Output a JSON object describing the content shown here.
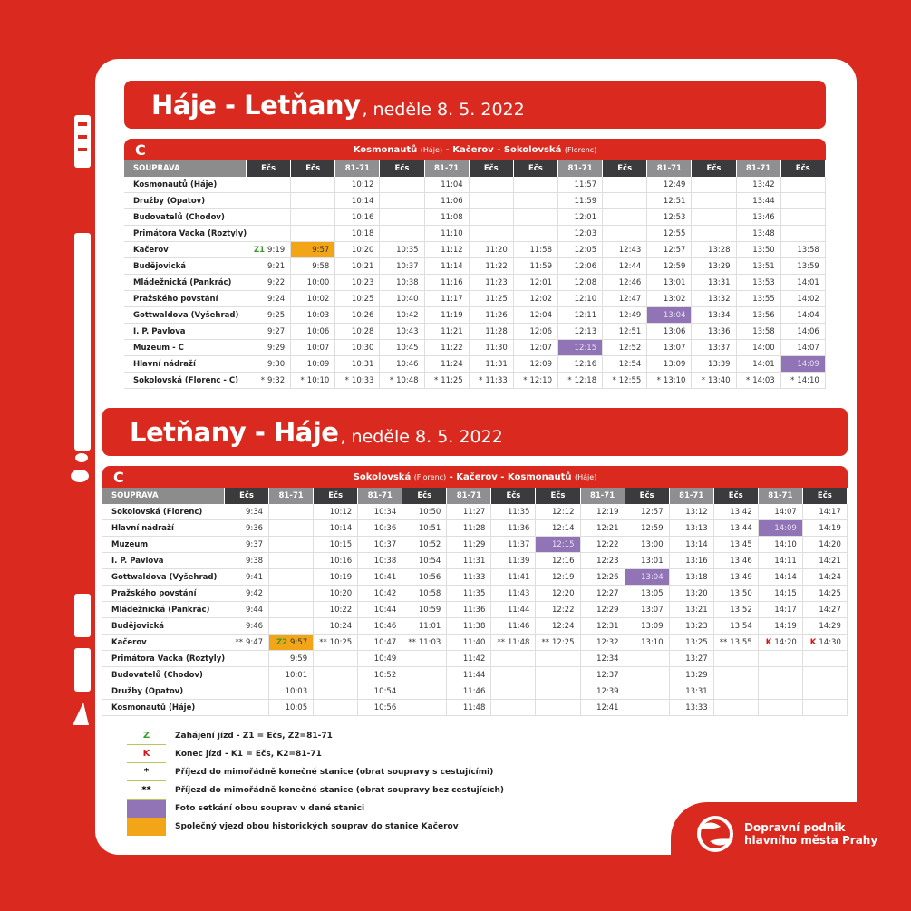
{
  "colors": {
    "red": "#da2a1f",
    "photo": "#9174b6",
    "joint": "#f2a516",
    "ecs_header": "#3b3b3d",
    "t81_header": "#8f8f92"
  },
  "top": {
    "title": "Háje - Letňany",
    "date": ", neděle 8. 5. 2022",
    "line": "C",
    "route": {
      "a": "Kosmonautů",
      "a_sub": "(Háje)",
      "b": " - Kačerov - ",
      "c": "Sokolovská",
      "c_sub": "(Florenc)"
    },
    "header": "SOUPRAVA",
    "columns": [
      "Ečs",
      "Ečs",
      "81-71",
      "Ečs",
      "81-71",
      "Ečs",
      "Ečs",
      "81-71",
      "Ečs",
      "81-71",
      "Ečs",
      "81-71",
      "Ečs"
    ],
    "rows": [
      {
        "station": "Kosmonautů (Háje)",
        "cells": [
          "",
          "",
          "10:12",
          "",
          "11:04",
          "",
          "",
          "11:57",
          "",
          "12:49",
          "",
          "13:42",
          ""
        ]
      },
      {
        "station": "Družby (Opatov)",
        "cells": [
          "",
          "",
          "10:14",
          "",
          "11:06",
          "",
          "",
          "11:59",
          "",
          "12:51",
          "",
          "13:44",
          ""
        ]
      },
      {
        "station": "Budovatelů (Chodov)",
        "cells": [
          "",
          "",
          "10:16",
          "",
          "11:08",
          "",
          "",
          "12:01",
          "",
          "12:53",
          "",
          "13:46",
          ""
        ]
      },
      {
        "station": "Primátora Vacka (Roztyly)",
        "cells": [
          "",
          "",
          "10:18",
          "",
          "11:10",
          "",
          "",
          "12:03",
          "",
          "12:55",
          "",
          "13:48",
          ""
        ]
      },
      {
        "station": "Kačerov",
        "cells": [
          {
            "pre": "Z1",
            "t": "9:19"
          },
          {
            "t": "9:57",
            "hl": "joint"
          },
          "10:20",
          "10:35",
          "11:12",
          "11:20",
          "11:58",
          "12:05",
          "12:43",
          "12:57",
          "13:28",
          "13:50",
          "13:58"
        ]
      },
      {
        "station": "Budějovická",
        "cells": [
          "9:21",
          "9:58",
          "10:21",
          "10:37",
          "11:14",
          "11:22",
          "11:59",
          "12:06",
          "12:44",
          "12:59",
          "13:29",
          "13:51",
          "13:59"
        ]
      },
      {
        "station": "Mládežnická (Pankrác)",
        "cells": [
          "9:22",
          "10:00",
          "10:23",
          "10:38",
          "11:16",
          "11:23",
          "12:01",
          "12:08",
          "12:46",
          "13:01",
          "13:31",
          "13:53",
          "14:01"
        ]
      },
      {
        "station": "Pražského povstání",
        "cells": [
          "9:24",
          "10:02",
          "10:25",
          "10:40",
          "11:17",
          "11:25",
          "12:02",
          "12:10",
          "12:47",
          "13:02",
          "13:32",
          "13:55",
          "14:02"
        ]
      },
      {
        "station": "Gottwaldova (Vyšehrad)",
        "cells": [
          "9:25",
          "10:03",
          "10:26",
          "10:42",
          "11:19",
          "11:26",
          "12:04",
          "12:11",
          "12:49",
          {
            "t": "13:04",
            "hl": "photo"
          },
          "13:34",
          "13:56",
          "14:04"
        ]
      },
      {
        "station": "I. P. Pavlova",
        "cells": [
          "9:27",
          "10:06",
          "10:28",
          "10:43",
          "11:21",
          "11:28",
          "12:06",
          "12:13",
          "12:51",
          "13:06",
          "13:36",
          "13:58",
          "14:06"
        ]
      },
      {
        "station": "Muzeum - C",
        "cells": [
          "9:29",
          "10:07",
          "10:30",
          "10:45",
          "11:22",
          "11:30",
          "12:07",
          {
            "t": "12:15",
            "hl": "photo"
          },
          "12:52",
          "13:07",
          "13:37",
          "14:00",
          "14:07"
        ]
      },
      {
        "station": "Hlavní nádraží",
        "cells": [
          "9:30",
          "10:09",
          "10:31",
          "10:46",
          "11:24",
          "11:31",
          "12:09",
          "12:16",
          "12:54",
          "13:09",
          "13:39",
          "14:01",
          {
            "t": "14:09",
            "hl": "photo"
          }
        ]
      },
      {
        "station": "Sokolovská (Florenc - C)",
        "cells": [
          {
            "pre": "*",
            "t": "9:32"
          },
          {
            "pre": "*",
            "t": "10:10"
          },
          {
            "pre": "*",
            "t": "10:33"
          },
          {
            "pre": "*",
            "t": "10:48"
          },
          {
            "pre": "*",
            "t": "11:25"
          },
          {
            "pre": "*",
            "t": "11:33"
          },
          {
            "pre": "*",
            "t": "12:10"
          },
          {
            "pre": "*",
            "t": "12:18"
          },
          {
            "pre": "*",
            "t": "12:55"
          },
          {
            "pre": "*",
            "t": "13:10"
          },
          {
            "pre": "*",
            "t": "13:40"
          },
          {
            "pre": "*",
            "t": "14:03"
          },
          {
            "pre": "*",
            "t": "14:10"
          }
        ]
      }
    ]
  },
  "bottom": {
    "title": "Letňany - Háje",
    "date": ", neděle 8. 5. 2022",
    "line": "C",
    "route": {
      "a": "Sokolovská",
      "a_sub": "(Florenc)",
      "b": " - Kačerov - ",
      "c": "Kosmonautů",
      "c_sub": "(Háje)"
    },
    "header": "SOUPRAVA",
    "columns": [
      "Ečs",
      "81-71",
      "Ečs",
      "81-71",
      "Ečs",
      "81-71",
      "Ečs",
      "Ečs",
      "81-71",
      "Ečs",
      "81-71",
      "Ečs",
      "81-71",
      "Ečs"
    ],
    "rows": [
      {
        "station": "Sokolovská (Florenc)",
        "cells": [
          "9:34",
          "",
          "10:12",
          "10:34",
          "10:50",
          "11:27",
          "11:35",
          "12:12",
          "12:19",
          "12:57",
          "13:12",
          "13:42",
          "14:07",
          "14:17"
        ]
      },
      {
        "station": "Hlavní nádraží",
        "cells": [
          "9:36",
          "",
          "10:14",
          "10:36",
          "10:51",
          "11:28",
          "11:36",
          "12:14",
          "12:21",
          "12:59",
          "13:13",
          "13:44",
          {
            "t": "14:09",
            "hl": "photo"
          },
          "14:19"
        ]
      },
      {
        "station": "Muzeum",
        "cells": [
          "9:37",
          "",
          "10:15",
          "10:37",
          "10:52",
          "11:29",
          "11:37",
          {
            "t": "12:15",
            "hl": "photo"
          },
          "12:22",
          "13:00",
          "13:14",
          "13:45",
          "14:10",
          "14:20"
        ]
      },
      {
        "station": "I. P. Pavlova",
        "cells": [
          "9:38",
          "",
          "10:16",
          "10:38",
          "10:54",
          "11:31",
          "11:39",
          "12:16",
          "12:23",
          "13:01",
          "13:16",
          "13:46",
          "14:11",
          "14:21"
        ]
      },
      {
        "station": "Gottwaldova (Vyšehrad)",
        "cells": [
          "9:41",
          "",
          "10:19",
          "10:41",
          "10:56",
          "11:33",
          "11:41",
          "12:19",
          "12:26",
          {
            "t": "13:04",
            "hl": "photo"
          },
          "13:18",
          "13:49",
          "14:14",
          "14:24"
        ]
      },
      {
        "station": "Pražského povstání",
        "cells": [
          "9:42",
          "",
          "10:20",
          "10:42",
          "10:58",
          "11:35",
          "11:43",
          "12:20",
          "12:27",
          "13:05",
          "13:20",
          "13:50",
          "14:15",
          "14:25"
        ]
      },
      {
        "station": "Mládežnická (Pankrác)",
        "cells": [
          "9:44",
          "",
          "10:22",
          "10:44",
          "10:59",
          "11:36",
          "11:44",
          "12:22",
          "12:29",
          "13:07",
          "13:21",
          "13:52",
          "14:17",
          "14:27"
        ]
      },
      {
        "station": "Budějovická",
        "cells": [
          "9:46",
          "",
          "10:24",
          "10:46",
          "11:01",
          "11:38",
          "11:46",
          "12:24",
          "12:31",
          "13:09",
          "13:23",
          "13:54",
          "14:19",
          "14:29"
        ]
      },
      {
        "station": "Kačerov",
        "cells": [
          {
            "pre": "**",
            "t": "9:47"
          },
          {
            "pre": "Z2",
            "t": "9:57",
            "hl": "joint"
          },
          {
            "pre": "**",
            "t": "10:25"
          },
          "10:47",
          {
            "pre": "**",
            "t": "11:03"
          },
          "11:40",
          {
            "pre": "**",
            "t": "11:48"
          },
          {
            "pre": "**",
            "t": "12:25"
          },
          "12:32",
          "13:10",
          "13:25",
          {
            "pre": "**",
            "t": "13:55"
          },
          {
            "pre": "K",
            "t": "14:20"
          },
          {
            "pre": "K",
            "t": "14:30"
          }
        ]
      },
      {
        "station": "Primátora Vacka (Roztyly)",
        "cells": [
          "",
          "9:59",
          "",
          "10:49",
          "",
          "11:42",
          "",
          "",
          "12:34",
          "",
          "13:27",
          "",
          "",
          ""
        ]
      },
      {
        "station": "Budovatelů (Chodov)",
        "cells": [
          "",
          "10:01",
          "",
          "10:52",
          "",
          "11:44",
          "",
          "",
          "12:37",
          "",
          "13:29",
          "",
          "",
          ""
        ]
      },
      {
        "station": "Družby (Opatov)",
        "cells": [
          "",
          "10:03",
          "",
          "10:54",
          "",
          "11:46",
          "",
          "",
          "12:39",
          "",
          "13:31",
          "",
          "",
          ""
        ]
      },
      {
        "station": "Kosmonautů (Háje)",
        "cells": [
          "",
          "10:05",
          "",
          "10:56",
          "",
          "11:48",
          "",
          "",
          "12:41",
          "",
          "13:33",
          "",
          "",
          ""
        ]
      }
    ]
  },
  "legend": [
    {
      "symbol": "Z",
      "type": "Z",
      "text": "Zahájení jízd - Z1 = Ečs, Z2=81-71"
    },
    {
      "symbol": "K",
      "type": "K",
      "text": "Konec jízd  - K1 = Ečs, K2=81-71"
    },
    {
      "symbol": "*",
      "type": "star",
      "text": "Příjezd do mimořádně konečné stanice (obrat soupravy s cestujícími)"
    },
    {
      "symbol": "**",
      "type": "star",
      "text": "Příjezd do mimořádně konečné stanice (obrat soupravy bez cestujících)"
    },
    {
      "symbol": "",
      "type": "photo",
      "text": "Foto setkání obou souprav v dané stanici"
    },
    {
      "symbol": "",
      "type": "joint",
      "text": "Společný vjezd obou historických souprav do stanice Kačerov"
    }
  ],
  "logo": {
    "line1": "Dopravní podnik",
    "line2": "hlavního města Prahy"
  }
}
